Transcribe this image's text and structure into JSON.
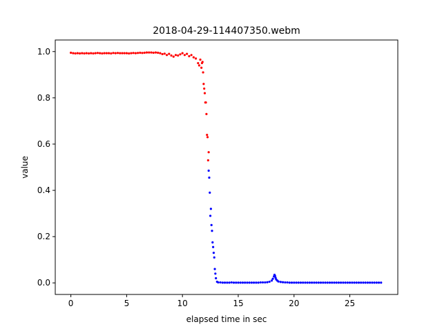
{
  "chart_data": {
    "type": "scatter",
    "title": "2018-04-29-114407350.webm",
    "xlabel": "elapsed time in sec",
    "ylabel": "value",
    "xlim": [
      -1.4,
      29.3
    ],
    "ylim": [
      -0.05,
      1.05
    ],
    "xticks": [
      0,
      5,
      10,
      15,
      20,
      25
    ],
    "yticks": [
      0.0,
      0.2,
      0.4,
      0.6,
      0.8,
      1.0
    ],
    "grid": false,
    "legend": "none",
    "colors": {
      "above": "#ff0000",
      "below": "#0000ff"
    },
    "series": [
      {
        "color": "#ff0000",
        "x": [
          0,
          0.2,
          0.4,
          0.6,
          0.8,
          1,
          1.2,
          1.4,
          1.6,
          1.8,
          2,
          2.2,
          2.4,
          2.6,
          2.8,
          3,
          3.2,
          3.4,
          3.6,
          3.8,
          4,
          4.2,
          4.4,
          4.6,
          4.8,
          5,
          5.2,
          5.4,
          5.6,
          5.8,
          6,
          6.2,
          6.4,
          6.6,
          6.8,
          7,
          7.2,
          7.4,
          7.6,
          7.8,
          8,
          8.2,
          8.4,
          8.6,
          8.8,
          9,
          9.2,
          9.4,
          9.6,
          9.8,
          10,
          10.2,
          10.4,
          10.6,
          10.8,
          11,
          11.2,
          11.4,
          11.5,
          11.6,
          11.7,
          11.75,
          11.8,
          11.85,
          11.9,
          11.95,
          12.0,
          12.05,
          12.1,
          12.15,
          12.2,
          12.25,
          12.3,
          12.35
        ],
        "y": [
          0.995,
          0.993,
          0.992,
          0.993,
          0.992,
          0.993,
          0.992,
          0.993,
          0.992,
          0.993,
          0.992,
          0.993,
          0.994,
          0.993,
          0.992,
          0.993,
          0.993,
          0.993,
          0.992,
          0.994,
          0.993,
          0.994,
          0.993,
          0.993,
          0.993,
          0.993,
          0.992,
          0.993,
          0.994,
          0.993,
          0.994,
          0.995,
          0.994,
          0.995,
          0.996,
          0.996,
          0.996,
          0.995,
          0.996,
          0.995,
          0.993,
          0.989,
          0.991,
          0.985,
          0.99,
          0.983,
          0.978,
          0.985,
          0.983,
          0.988,
          0.993,
          0.985,
          0.99,
          0.98,
          0.985,
          0.975,
          0.97,
          0.95,
          0.94,
          0.965,
          0.93,
          0.95,
          0.955,
          0.91,
          0.86,
          0.84,
          0.82,
          0.78,
          0.78,
          0.73,
          0.64,
          0.63,
          0.53,
          0.565
        ]
      },
      {
        "color": "#0000ff",
        "x": [
          12.35,
          12.4,
          12.45,
          12.5,
          12.55,
          12.6,
          12.65,
          12.7,
          12.75,
          12.8,
          12.85,
          12.9,
          12.95,
          13.0,
          13.1,
          13.2,
          13.4,
          13.6,
          13.8,
          14.0,
          14.2,
          14.4,
          14.6,
          14.8,
          15.0,
          15.2,
          15.4,
          15.6,
          15.8,
          16.0,
          16.2,
          16.4,
          16.6,
          16.8,
          17.0,
          17.2,
          17.4,
          17.6,
          17.8,
          18.0,
          18.1,
          18.2,
          18.25,
          18.3,
          18.35,
          18.4,
          18.5,
          18.6,
          18.8,
          19.0,
          19.2,
          19.4,
          19.6,
          19.8,
          20.0,
          20.2,
          20.4,
          20.6,
          20.8,
          21.0,
          21.2,
          21.4,
          21.6,
          21.8,
          22.0,
          22.2,
          22.4,
          22.6,
          22.8,
          23.0,
          23.2,
          23.4,
          23.6,
          23.8,
          24.0,
          24.2,
          24.4,
          24.6,
          24.8,
          25.0,
          25.2,
          25.4,
          25.6,
          25.8,
          26.0,
          26.2,
          26.4,
          26.6,
          26.8,
          27.0,
          27.2,
          27.4,
          27.6,
          27.8
        ],
        "y": [
          0.485,
          0.455,
          0.39,
          0.29,
          0.32,
          0.25,
          0.225,
          0.175,
          0.155,
          0.13,
          0.11,
          0.06,
          0.04,
          0.02,
          0.005,
          0.002,
          0.002,
          0.001,
          0.001,
          0.001,
          0.001,
          0.002,
          0.001,
          0.001,
          0.001,
          0.001,
          0.001,
          0.001,
          0.001,
          0.001,
          0.001,
          0.001,
          0.001,
          0.001,
          0.002,
          0.002,
          0.002,
          0.003,
          0.005,
          0.01,
          0.018,
          0.028,
          0.035,
          0.03,
          0.022,
          0.015,
          0.01,
          0.006,
          0.004,
          0.003,
          0.002,
          0.002,
          0.001,
          0.001,
          0.001,
          0.001,
          0.001,
          0.001,
          0.001,
          0.001,
          0.001,
          0.001,
          0.001,
          0.001,
          0.001,
          0.001,
          0.001,
          0.001,
          0.001,
          0.001,
          0.001,
          0.001,
          0.001,
          0.001,
          0.001,
          0.001,
          0.001,
          0.001,
          0.001,
          0.001,
          0.001,
          0.001,
          0.001,
          0.001,
          0.001,
          0.001,
          0.001,
          0.001,
          0.001,
          0.001,
          0.001,
          0.001,
          0.001,
          0.001
        ]
      }
    ]
  }
}
